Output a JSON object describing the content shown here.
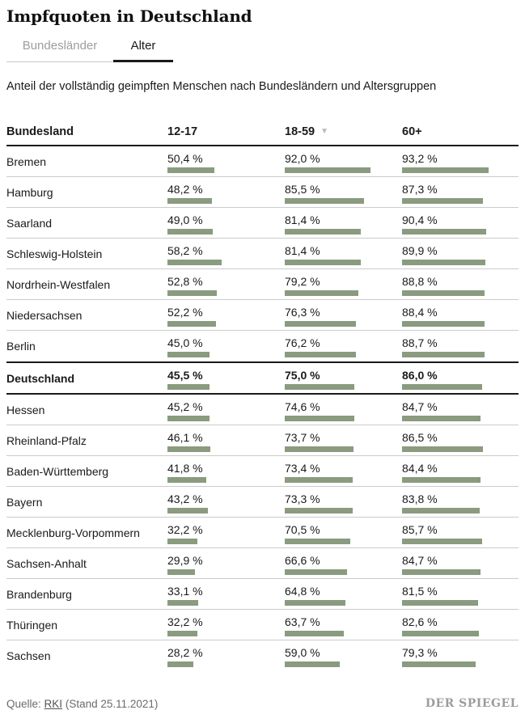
{
  "header": {
    "title": "Impfquoten in Deutschland"
  },
  "tabs": [
    {
      "label": "Bundesländer",
      "active": false
    },
    {
      "label": "Alter",
      "active": true
    }
  ],
  "subtitle": "Anteil der vollständig geimpften Menschen nach Bundesländern und Altersgruppen",
  "chart_data": {
    "type": "table",
    "title": "Impfquoten in Deutschland",
    "subtitle": "Anteil der vollständig geimpften Menschen nach Bundesländern und Altersgruppen",
    "columns": [
      "Bundesland",
      "12-17",
      "18-59",
      "60+"
    ],
    "sort_indicator_column": "18-59",
    "unit": "%",
    "bar_color": "#8a9b80",
    "bar_axis_max": 100,
    "rows": [
      {
        "label": "Bremen",
        "values": [
          50.4,
          92.0,
          93.2
        ],
        "display": [
          "50,4 %",
          "92,0 %",
          "93,2 %"
        ],
        "emphasis": false
      },
      {
        "label": "Hamburg",
        "values": [
          48.2,
          85.5,
          87.3
        ],
        "display": [
          "48,2 %",
          "85,5 %",
          "87,3 %"
        ],
        "emphasis": false
      },
      {
        "label": "Saarland",
        "values": [
          49.0,
          81.4,
          90.4
        ],
        "display": [
          "49,0 %",
          "81,4 %",
          "90,4 %"
        ],
        "emphasis": false
      },
      {
        "label": "Schleswig-Holstein",
        "values": [
          58.2,
          81.4,
          89.9
        ],
        "display": [
          "58,2 %",
          "81,4 %",
          "89,9 %"
        ],
        "emphasis": false
      },
      {
        "label": "Nordrhein-Westfalen",
        "values": [
          52.8,
          79.2,
          88.8
        ],
        "display": [
          "52,8 %",
          "79,2 %",
          "88,8 %"
        ],
        "emphasis": false
      },
      {
        "label": "Niedersachsen",
        "values": [
          52.2,
          76.3,
          88.4
        ],
        "display": [
          "52,2 %",
          "76,3 %",
          "88,4 %"
        ],
        "emphasis": false
      },
      {
        "label": "Berlin",
        "values": [
          45.0,
          76.2,
          88.7
        ],
        "display": [
          "45,0 %",
          "76,2 %",
          "88,7 %"
        ],
        "emphasis": false
      },
      {
        "label": "Deutschland",
        "values": [
          45.5,
          75.0,
          86.0
        ],
        "display": [
          "45,5 %",
          "75,0 %",
          "86,0 %"
        ],
        "emphasis": true
      },
      {
        "label": "Hessen",
        "values": [
          45.2,
          74.6,
          84.7
        ],
        "display": [
          "45,2 %",
          "74,6 %",
          "84,7 %"
        ],
        "emphasis": false
      },
      {
        "label": "Rheinland-Pfalz",
        "values": [
          46.1,
          73.7,
          86.5
        ],
        "display": [
          "46,1 %",
          "73,7 %",
          "86,5 %"
        ],
        "emphasis": false
      },
      {
        "label": "Baden-Württemberg",
        "values": [
          41.8,
          73.4,
          84.4
        ],
        "display": [
          "41,8 %",
          "73,4 %",
          "84,4 %"
        ],
        "emphasis": false
      },
      {
        "label": "Bayern",
        "values": [
          43.2,
          73.3,
          83.8
        ],
        "display": [
          "43,2 %",
          "73,3 %",
          "83,8 %"
        ],
        "emphasis": false
      },
      {
        "label": "Mecklenburg-Vorpommern",
        "values": [
          32.2,
          70.5,
          85.7
        ],
        "display": [
          "32,2 %",
          "70,5 %",
          "85,7 %"
        ],
        "emphasis": false
      },
      {
        "label": "Sachsen-Anhalt",
        "values": [
          29.9,
          66.6,
          84.7
        ],
        "display": [
          "29,9 %",
          "66,6 %",
          "84,7 %"
        ],
        "emphasis": false
      },
      {
        "label": "Brandenburg",
        "values": [
          33.1,
          64.8,
          81.5
        ],
        "display": [
          "33,1 %",
          "64,8 %",
          "81,5 %"
        ],
        "emphasis": false
      },
      {
        "label": "Thüringen",
        "values": [
          32.2,
          63.7,
          82.6
        ],
        "display": [
          "32,2 %",
          "63,7 %",
          "82,6 %"
        ],
        "emphasis": false
      },
      {
        "label": "Sachsen",
        "values": [
          28.2,
          59.0,
          79.3
        ],
        "display": [
          "28,2 %",
          "59,0 %",
          "79,3 %"
        ],
        "emphasis": false
      }
    ]
  },
  "footer": {
    "source_prefix": "Quelle:",
    "source_link": "RKI",
    "source_suffix": "(Stand 25.11.2021)",
    "brand": "DER SPIEGEL"
  }
}
